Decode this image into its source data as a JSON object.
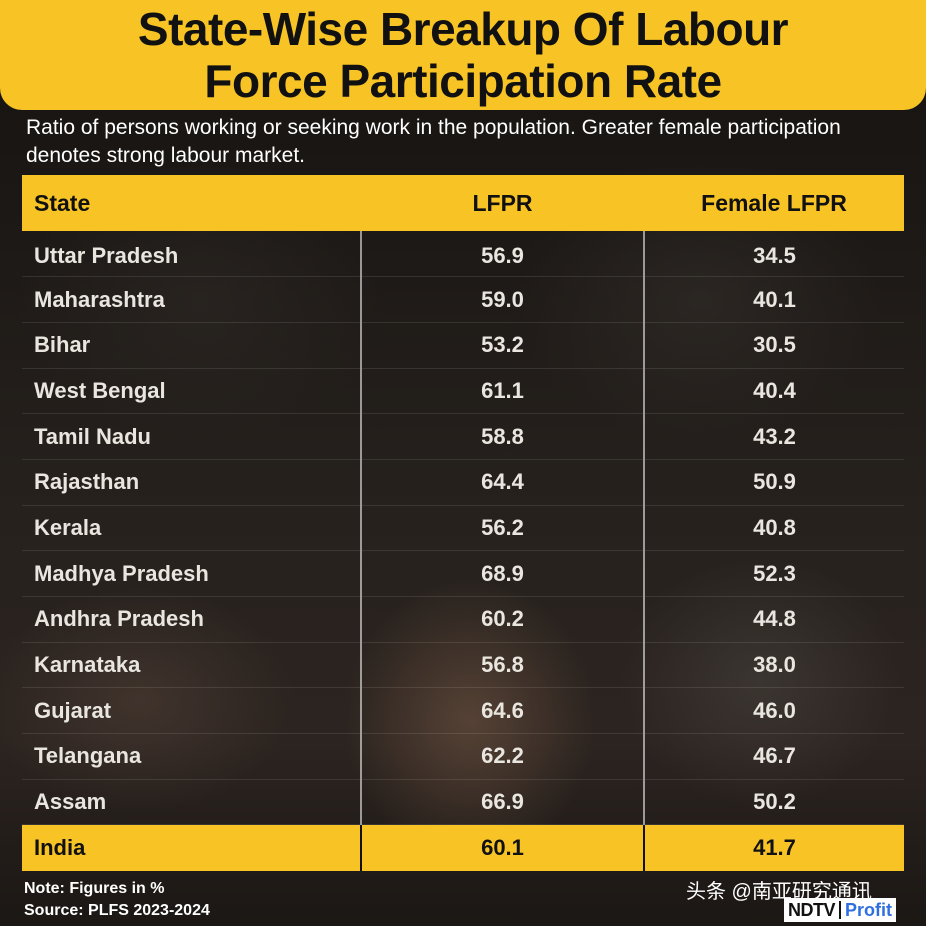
{
  "header": {
    "title_line1": "State-Wise Breakup Of Labour",
    "title_line2": "Force Participation Rate",
    "subtitle": "Ratio of persons working or seeking work in the population. Greater female participation denotes strong labour market."
  },
  "colors": {
    "accent": "#f7c325",
    "text_dark": "#111111",
    "text_light": "#e9e6e0"
  },
  "chart_data": {
    "type": "table",
    "columns": [
      "State",
      "LFPR",
      "Female LFPR"
    ],
    "rows": [
      [
        "Uttar Pradesh",
        "56.9",
        "34.5"
      ],
      [
        "Maharashtra",
        "59.0",
        "40.1"
      ],
      [
        "Bihar",
        "53.2",
        "30.5"
      ],
      [
        "West Bengal",
        "61.1",
        "40.4"
      ],
      [
        "Tamil Nadu",
        "58.8",
        "43.2"
      ],
      [
        "Rajasthan",
        "64.4",
        "50.9"
      ],
      [
        "Kerala",
        "56.2",
        "40.8"
      ],
      [
        "Madhya Pradesh",
        "68.9",
        "52.3"
      ],
      [
        "Andhra Pradesh",
        "60.2",
        "44.8"
      ],
      [
        "Karnataka",
        "56.8",
        "38.0"
      ],
      [
        "Gujarat",
        "64.6",
        "46.0"
      ],
      [
        "Telangana",
        "62.2",
        "46.7"
      ],
      [
        "Assam",
        "66.9",
        "50.2"
      ]
    ],
    "total_row": [
      "India",
      "60.1",
      "41.7"
    ]
  },
  "footer": {
    "note": "Note: Figures in %",
    "source": "Source: PLFS 2023-2024",
    "watermark": "头条 @南亚研究通讯",
    "logo_left": "NDTV",
    "logo_right": "Profit"
  }
}
